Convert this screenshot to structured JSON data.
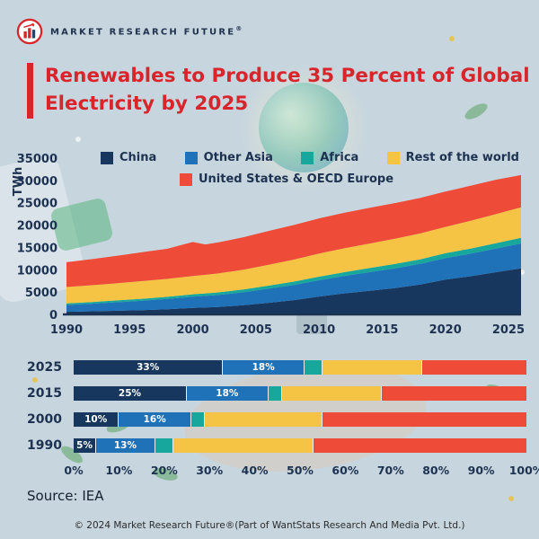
{
  "meta": {
    "brand": "MARKET RESEARCH FUTURE",
    "brand_reg": "®",
    "title_line1": "Renewables to Produce 35 Percent of Global",
    "title_line2": "Electricity by 2025",
    "source_label": "Source: IEA",
    "footer": "© 2024 Market Research Future®(Part of WantStats Research And Media Pvt. Ltd.)"
  },
  "colors": {
    "background": "#c7d5de",
    "accent_red": "#d7252b",
    "text_navy": "#1c3250"
  },
  "chart_data": [
    {
      "type": "area",
      "stacked": true,
      "title": "",
      "ylabel": "TWh",
      "ylim": [
        0,
        35000
      ],
      "yticks": [
        0,
        5000,
        10000,
        15000,
        20000,
        25000,
        30000,
        35000
      ],
      "xticks": [
        1990,
        1995,
        2000,
        2005,
        2010,
        2015,
        2020,
        2025
      ],
      "legend_position": "top-inside",
      "grid": false,
      "x": [
        1990,
        1992,
        1994,
        1996,
        1998,
        2000,
        2001,
        2002,
        2004,
        2006,
        2008,
        2010,
        2012,
        2014,
        2016,
        2018,
        2020,
        2022,
        2024,
        2026
      ],
      "series": [
        {
          "name": "China",
          "color": "#17375e",
          "values": [
            590,
            700,
            820,
            960,
            1150,
            1450,
            1550,
            1650,
            2050,
            2600,
            3200,
            4000,
            4700,
            5300,
            5900,
            6700,
            7800,
            8550,
            9450,
            10300
          ]
        },
        {
          "name": "Other Asia",
          "color": "#1f71b8",
          "values": [
            1530,
            1700,
            1900,
            2100,
            2300,
            2530,
            2600,
            2700,
            2900,
            3150,
            3400,
            3650,
            3900,
            4150,
            4400,
            4600,
            4800,
            5050,
            5300,
            5600
          ]
        },
        {
          "name": "Africa",
          "color": "#18a79d",
          "values": [
            350,
            380,
            410,
            450,
            490,
            530,
            550,
            570,
            620,
            680,
            740,
            800,
            860,
            920,
            980,
            1040,
            1100,
            1150,
            1200,
            1250
          ]
        },
        {
          "name": "Rest of the world",
          "color": "#f5c445",
          "values": [
            3660,
            3750,
            3850,
            3950,
            4020,
            4100,
            4170,
            4250,
            4450,
            4700,
            4930,
            5160,
            5350,
            5500,
            5650,
            5780,
            5900,
            6200,
            6500,
            6850
          ]
        },
        {
          "name": "United States & OECD Europe",
          "color": "#ee4b38",
          "values": [
            5550,
            5850,
            6150,
            6450,
            6750,
            7600,
            6800,
            6950,
            7250,
            7550,
            7750,
            7890,
            7950,
            7980,
            8000,
            7950,
            7900,
            7850,
            7700,
            7200
          ]
        }
      ]
    },
    {
      "type": "bar",
      "orientation": "horizontal",
      "stacked": true,
      "unit": "%",
      "categories": [
        "2025",
        "2015",
        "2000",
        "1990"
      ],
      "xticks": [
        "0%",
        "10%",
        "20%",
        "30%",
        "40%",
        "50%",
        "60%",
        "70%",
        "80%",
        "90%",
        "100%"
      ],
      "series": [
        {
          "name": "China",
          "color": "#17375e",
          "values": [
            33,
            25,
            10,
            5
          ],
          "labels": [
            "33%",
            "25%",
            "10%",
            "5%"
          ]
        },
        {
          "name": "Other Asia",
          "color": "#1f71b8",
          "values": [
            18,
            18,
            16,
            13
          ],
          "labels": [
            "18%",
            "18%",
            "16%",
            "13%"
          ]
        },
        {
          "name": "Africa",
          "color": "#18a79d",
          "values": [
            4,
            3,
            3,
            4
          ],
          "labels": [
            "",
            "",
            "",
            ""
          ]
        },
        {
          "name": "Rest of the world",
          "color": "#f5c445",
          "values": [
            22,
            22,
            26,
            31
          ],
          "labels": [
            "",
            "",
            "",
            ""
          ]
        },
        {
          "name": "United States & OECD Europe",
          "color": "#ee4b38",
          "values": [
            23,
            32,
            45,
            47
          ],
          "labels": [
            "",
            "",
            "",
            ""
          ]
        }
      ]
    }
  ]
}
